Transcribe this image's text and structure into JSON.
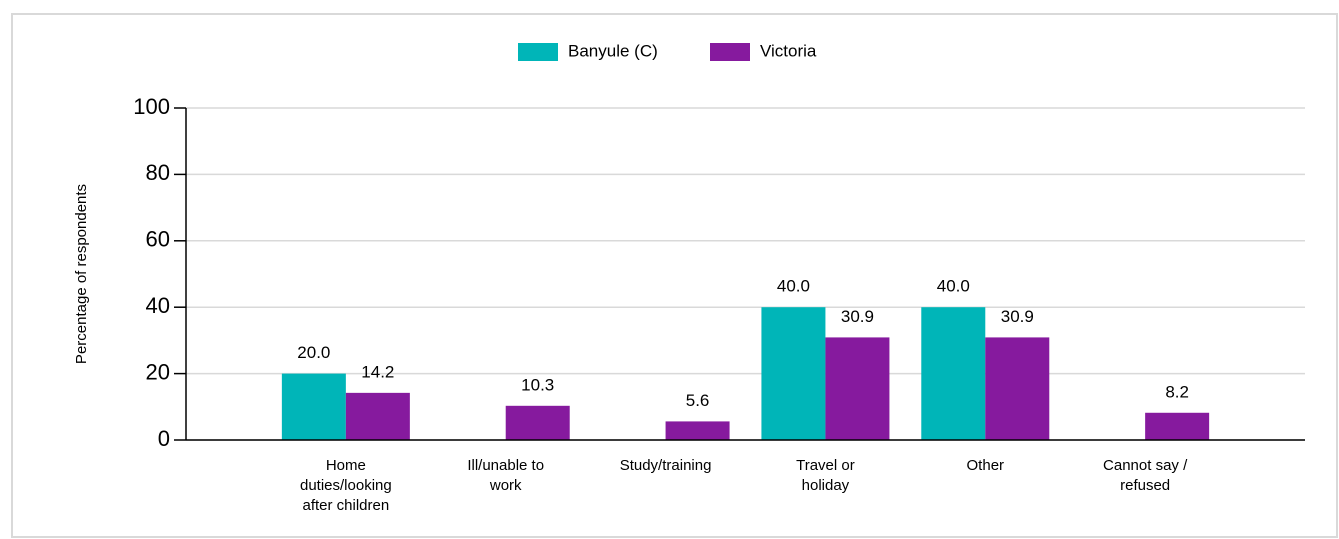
{
  "chart_data": {
    "type": "bar",
    "categories": [
      "Home duties/looking after children",
      "Ill/unable to work",
      "Study/training",
      "Travel or holiday",
      "Other",
      "Cannot say / refused"
    ],
    "series": [
      {
        "name": "Banyule (C)",
        "color": "#00b5b8",
        "values": [
          20.0,
          null,
          null,
          40.0,
          40.0,
          null
        ],
        "value_labels": [
          "20.0",
          null,
          null,
          "40.0",
          "40.0",
          null
        ]
      },
      {
        "name": "Victoria",
        "color": "#861a9e",
        "values": [
          14.2,
          10.3,
          5.6,
          30.9,
          30.9,
          8.2
        ]
      }
    ],
    "ylabel": "Percentage of respondents",
    "ylim": [
      0,
      100
    ],
    "yticks": [
      0,
      20,
      40,
      60,
      80,
      100
    ],
    "grid": true,
    "legend": "top"
  }
}
